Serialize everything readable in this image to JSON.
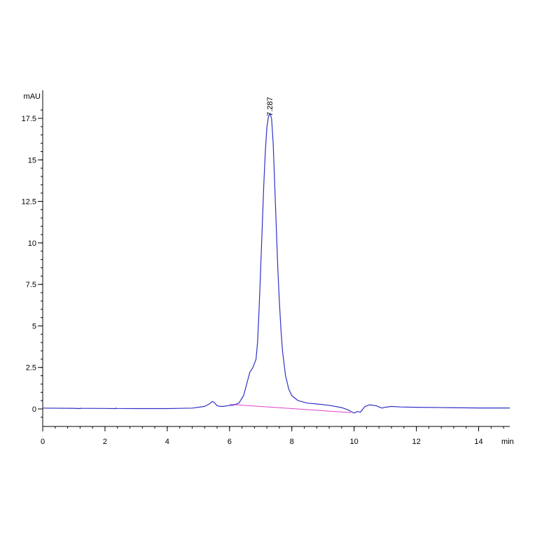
{
  "chart_data": {
    "type": "line",
    "title": "",
    "xlabel": "min",
    "ylabel": "mAU",
    "xlim": [
      0,
      15
    ],
    "ylim": [
      -0.4,
      18.3
    ],
    "grid": false,
    "x_ticks": [
      {
        "value": 0,
        "label": "0"
      },
      {
        "value": 2,
        "label": "2"
      },
      {
        "value": 4,
        "label": "4"
      },
      {
        "value": 6,
        "label": "6"
      },
      {
        "value": 8,
        "label": "8"
      },
      {
        "value": 10,
        "label": "10"
      },
      {
        "value": 12,
        "label": "12"
      },
      {
        "value": 14,
        "label": "14"
      }
    ],
    "x_minor_step": 0.4,
    "y_ticks": [
      {
        "value": 0,
        "label": "0"
      },
      {
        "value": 2.5,
        "label": "2.5"
      },
      {
        "value": 5,
        "label": "5"
      },
      {
        "value": 7.5,
        "label": "7.5"
      },
      {
        "value": 10,
        "label": "10"
      },
      {
        "value": 12.5,
        "label": "12.5"
      },
      {
        "value": 15,
        "label": "15"
      },
      {
        "value": 17.5,
        "label": "17.5"
      }
    ],
    "y_minor_step": 0.5,
    "colors": {
      "signal": "#3030c8",
      "baseline": "#e040d0",
      "axis": "#000000"
    },
    "series": [
      {
        "values_x": [
          0,
          1,
          1.2,
          1.21,
          1.22,
          2,
          2.35,
          2.36,
          2.37,
          3,
          4,
          4.8,
          5.2,
          5.35,
          5.45,
          5.5,
          5.6,
          5.7,
          5.8,
          5.95,
          6.1,
          6.3,
          6.45,
          6.55,
          6.65,
          6.75,
          6.85,
          6.9,
          6.95,
          7.0,
          7.05,
          7.1,
          7.15,
          7.2,
          7.25,
          7.3,
          7.35,
          7.4,
          7.45,
          7.5,
          7.55,
          7.6,
          7.65,
          7.7,
          7.8,
          7.9,
          8.0,
          8.2,
          8.5,
          8.8,
          9.2,
          9.6,
          9.8,
          9.9,
          10.0,
          10.1,
          10.2,
          10.35,
          10.5,
          10.7,
          10.9,
          10.95,
          11.0,
          11.2,
          11.5,
          12,
          13,
          14,
          15
        ],
        "values_y": [
          0.05,
          0.04,
          0.02,
          0.05,
          0.04,
          0.03,
          0.02,
          0.06,
          0.03,
          0.02,
          0.02,
          0.05,
          0.15,
          0.3,
          0.45,
          0.4,
          0.2,
          0.15,
          0.15,
          0.2,
          0.22,
          0.35,
          0.8,
          1.5,
          2.2,
          2.5,
          3.0,
          4.0,
          6.0,
          8.5,
          11.0,
          13.5,
          15.5,
          17.0,
          17.6,
          17.8,
          17.5,
          16.0,
          13.5,
          11.0,
          8.5,
          6.5,
          4.8,
          3.5,
          2.0,
          1.2,
          0.8,
          0.5,
          0.35,
          0.3,
          0.22,
          0.08,
          -0.05,
          -0.15,
          -0.25,
          -0.15,
          -0.2,
          0.15,
          0.25,
          0.2,
          0.05,
          0.08,
          0.1,
          0.15,
          0.12,
          0.1,
          0.08,
          0.06,
          0.06
        ]
      }
    ],
    "baseline": {
      "values_x": [
        6.0,
        9.9
      ],
      "values_y": [
        0.28,
        -0.22
      ]
    },
    "annotations": [
      {
        "label": "7.287",
        "x": 7.287,
        "y": 17.8
      }
    ]
  }
}
